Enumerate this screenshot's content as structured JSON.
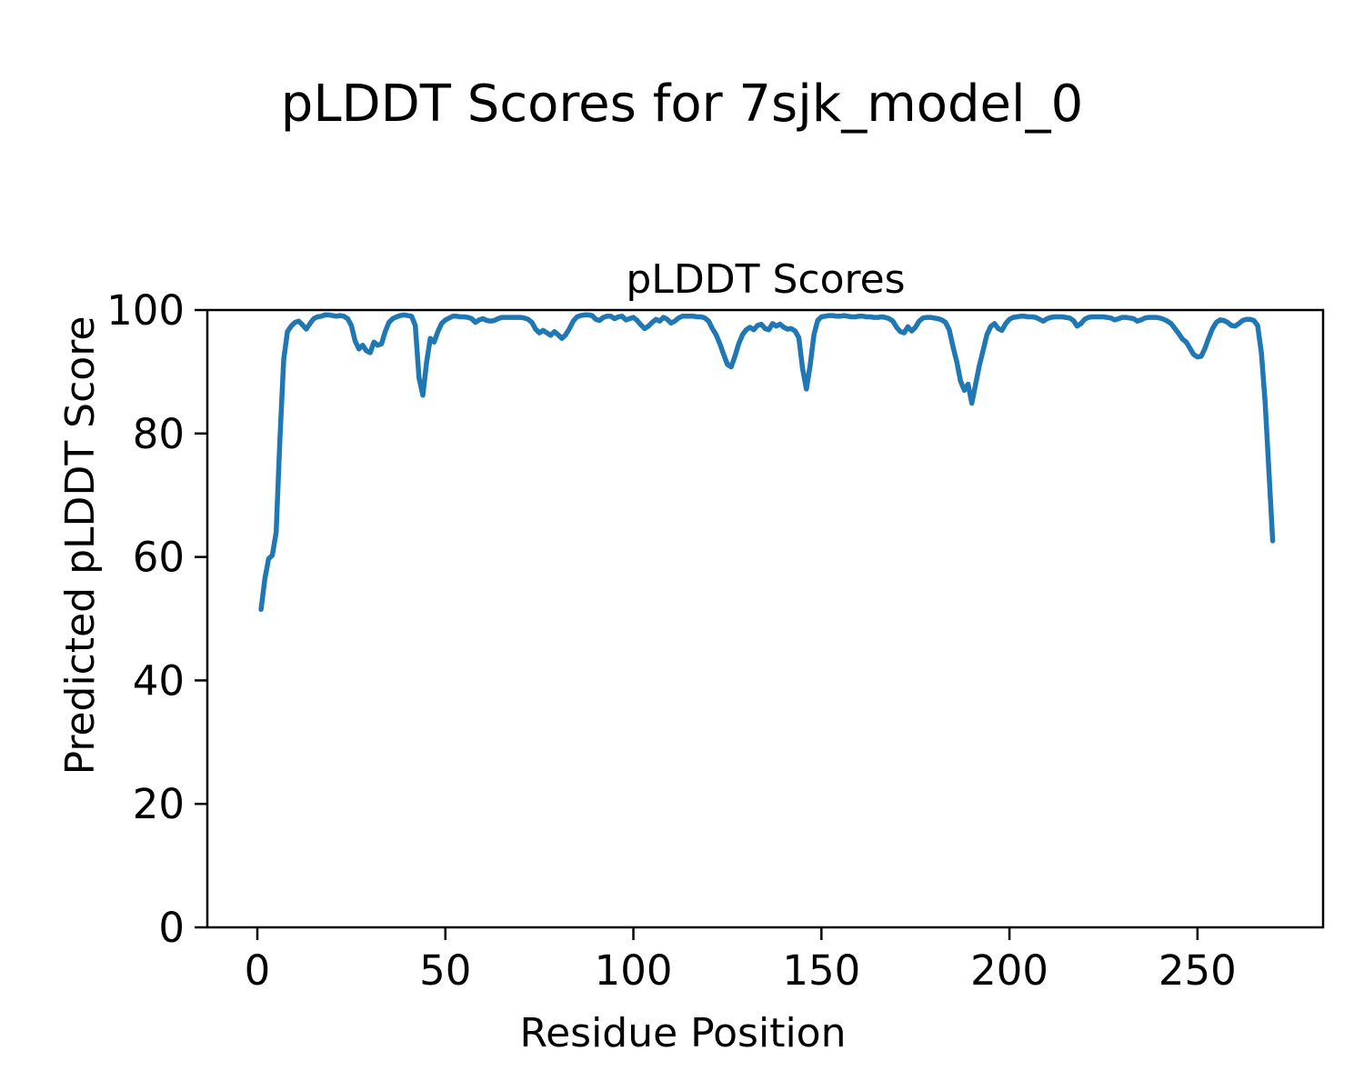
{
  "figure": {
    "background": "#ffffff",
    "text_color": "#000000"
  },
  "chart_data": {
    "type": "line",
    "suptitle": "pLDDT Scores for 7sjk_model_0",
    "title": "pLDDT Scores",
    "xlabel": "Residue Position",
    "ylabel": "Predicted pLDDT Score",
    "xlim": [
      -13.3,
      283.4
    ],
    "ylim": [
      0,
      100
    ],
    "x_ticks": [
      0,
      50,
      100,
      150,
      200,
      250
    ],
    "y_ticks": [
      0,
      20,
      40,
      60,
      80,
      100
    ],
    "grid": false,
    "legend": "none",
    "line_color": "#1f77b4",
    "line_width": 5.5,
    "series": [
      {
        "name": "pLDDT",
        "x_start": 1,
        "x_step": 1,
        "values": [
          51.5,
          56.5,
          59.7,
          60.3,
          64.0,
          79.0,
          92.0,
          96.5,
          97.4,
          98.0,
          98.2,
          97.6,
          96.9,
          97.8,
          98.6,
          98.9,
          99.0,
          99.2,
          99.2,
          99.1,
          99.0,
          99.1,
          99.0,
          98.6,
          97.5,
          95.0,
          93.7,
          94.3,
          93.4,
          93.1,
          94.8,
          94.3,
          94.5,
          96.5,
          98.0,
          98.6,
          98.9,
          99.1,
          99.2,
          99.1,
          99.0,
          97.5,
          89.0,
          86.2,
          91.5,
          95.4,
          94.8,
          96.5,
          97.8,
          98.4,
          98.7,
          99.0,
          99.0,
          98.9,
          98.9,
          98.8,
          98.6,
          98.0,
          98.4,
          98.6,
          98.3,
          98.2,
          98.3,
          98.6,
          98.8,
          98.8,
          98.8,
          98.8,
          98.8,
          98.8,
          98.7,
          98.5,
          98.0,
          96.9,
          96.3,
          96.7,
          96.3,
          95.9,
          96.5,
          96.0,
          95.4,
          96.0,
          97.0,
          98.2,
          98.9,
          99.1,
          99.2,
          99.2,
          99.1,
          98.5,
          98.3,
          98.8,
          99.0,
          99.0,
          98.6,
          98.9,
          99.0,
          98.4,
          98.6,
          98.8,
          98.3,
          97.6,
          97.0,
          97.4,
          98.0,
          98.5,
          98.2,
          98.8,
          98.5,
          97.9,
          98.2,
          98.7,
          99.0,
          99.0,
          99.0,
          99.0,
          98.9,
          98.9,
          98.7,
          98.2,
          97.0,
          96.0,
          94.5,
          92.8,
          91.2,
          90.8,
          92.5,
          94.5,
          96.0,
          96.8,
          97.2,
          96.8,
          97.5,
          97.7,
          97.0,
          96.8,
          97.8,
          97.4,
          97.7,
          97.2,
          96.9,
          97.0,
          96.6,
          95.5,
          90.5,
          87.2,
          91.0,
          96.0,
          98.3,
          98.9,
          99.0,
          99.1,
          99.1,
          99.0,
          99.0,
          99.1,
          99.0,
          98.9,
          98.9,
          99.0,
          99.0,
          98.9,
          98.9,
          98.8,
          98.8,
          98.9,
          98.8,
          98.6,
          98.2,
          97.2,
          96.5,
          96.3,
          97.3,
          96.6,
          97.2,
          98.2,
          98.7,
          98.8,
          98.8,
          98.7,
          98.6,
          98.4,
          98.0,
          96.8,
          94.0,
          91.6,
          88.5,
          87.0,
          88.0,
          84.9,
          88.0,
          91.0,
          93.5,
          96.0,
          97.3,
          97.8,
          97.0,
          96.7,
          97.8,
          98.5,
          98.8,
          98.9,
          99.0,
          99.0,
          98.9,
          98.9,
          98.8,
          98.5,
          98.2,
          98.6,
          98.8,
          98.9,
          98.9,
          98.9,
          98.8,
          98.7,
          98.3,
          97.4,
          97.8,
          98.5,
          98.8,
          98.9,
          98.9,
          98.9,
          98.9,
          98.8,
          98.7,
          98.4,
          98.6,
          98.8,
          98.8,
          98.7,
          98.6,
          98.2,
          98.4,
          98.7,
          98.8,
          98.8,
          98.8,
          98.7,
          98.5,
          98.2,
          97.8,
          97.0,
          96.2,
          95.3,
          94.8,
          93.8,
          92.8,
          92.4,
          92.5,
          93.8,
          95.5,
          97.0,
          98.0,
          98.4,
          98.3,
          98.0,
          97.5,
          97.4,
          97.8,
          98.3,
          98.5,
          98.5,
          98.3,
          97.5,
          93.0,
          85.0,
          74.0,
          62.6
        ]
      }
    ]
  }
}
